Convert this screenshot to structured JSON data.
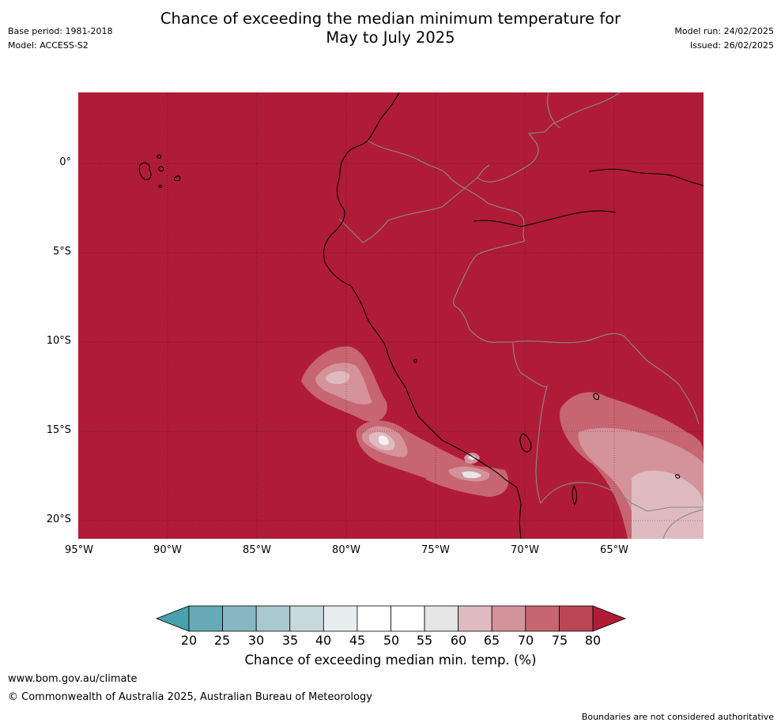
{
  "header": {
    "title_line1": "Chance of exceeding the median minimum temperature for",
    "title_line2": "May to July 2025",
    "base_period": "Base period: 1981-2018",
    "model": "Model: ACCESS-S2",
    "model_run": "Model run: 24/02/2025",
    "issued": "Issued: 26/02/2025"
  },
  "map": {
    "y_ticks": [
      "0°",
      "5°S",
      "10°S",
      "15°S",
      "20°S"
    ],
    "x_ticks": [
      "95°W",
      "90°W",
      "85°W",
      "80°W",
      "75°W",
      "70°W",
      "65°W"
    ],
    "colors": {
      "background_class": "#b01c37",
      "coast": "#000000",
      "borders": "#8a8a8a"
    }
  },
  "colorbar": {
    "labels": [
      "20",
      "25",
      "30",
      "35",
      "40",
      "45",
      "50",
      "55",
      "60",
      "65",
      "70",
      "75",
      "80"
    ],
    "colors": [
      "#66aab5",
      "#86b7c3",
      "#a9c9ce",
      "#c8d9dd",
      "#e8eef0",
      "#ffffff",
      "#ffffff",
      "#e6e6e6",
      "#dfbac0",
      "#d4929b",
      "#c76571",
      "#bd4655"
    ],
    "under_color": "#4aa0ac",
    "over_color": "#b01c37",
    "title": "Chance of exceeding median min. temp. (%)"
  },
  "footer": {
    "url": "www.bom.gov.au/climate",
    "copyright": "© Commonwealth of Australia 2025, Australian Bureau of Meteorology",
    "disclaimer": "Boundaries are not considered authoritative"
  }
}
